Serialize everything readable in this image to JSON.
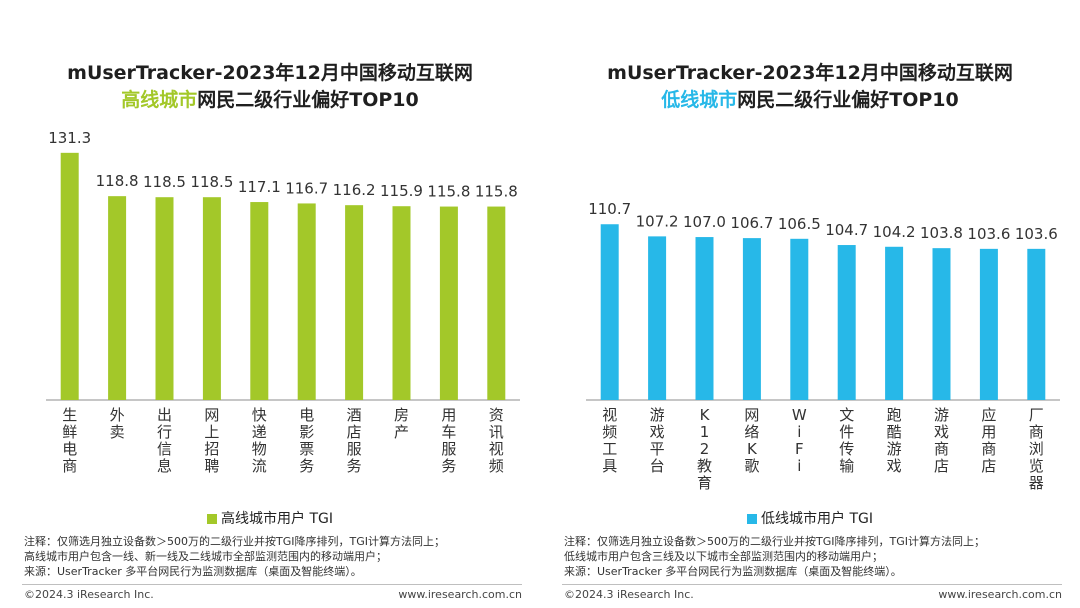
{
  "left": {
    "title_line1": "mUserTracker-2023年12月中国移动互联网",
    "title_highlight": "高线城市",
    "title_rest": "网民二级行业偏好TOP10",
    "legend": "高线城市用户 TGI",
    "note": [
      "注释：仅筛选月独立设备数＞500万的二级行业并按TGI降序排列，TGI计算方法同上；",
      "高线城市用户包含一线、新一线及二线城市全部监测范围内的移动端用户；",
      "来源：UserTracker 多平台网民行为监测数据库（桌面及智能终端）。"
    ],
    "copyright": "©2024.3 iResearch Inc.",
    "site": "www.iresearch.com.cn"
  },
  "right": {
    "title_line1": "mUserTracker-2023年12月中国移动互联网",
    "title_highlight": "低线城市",
    "title_rest": "网民二级行业偏好TOP10",
    "legend": "低线城市用户 TGI",
    "note": [
      "注释：仅筛选月独立设备数＞500万的二级行业并按TGI降序排列，TGI计算方法同上；",
      "低线城市用户包含三线及以下城市全部监测范围内的移动端用户；",
      "来源：UserTracker 多平台网民行为监测数据库（桌面及智能终端）。"
    ],
    "copyright": "©2024.3 iResearch Inc.",
    "site": "www.iresearch.com.cn"
  },
  "colors": {
    "green": "#a3c829",
    "blue": "#27b8e8"
  },
  "chart_data": [
    {
      "type": "bar",
      "title": "mUserTracker-2023年12月中国移动互联网高线城市网民二级行业偏好TOP10",
      "categories": [
        "生鲜电商",
        "外卖",
        "出行信息",
        "网上招聘",
        "快递物流",
        "电影票务",
        "酒店服务",
        "房产",
        "用车服务",
        "资讯视频"
      ],
      "series": [
        {
          "name": "高线城市用户 TGI",
          "values": [
            131.3,
            118.8,
            118.5,
            118.5,
            117.1,
            116.7,
            116.2,
            115.9,
            115.8,
            115.8
          ]
        }
      ],
      "ylim": [
        60,
        135
      ],
      "xlabel": "",
      "ylabel": "",
      "legend": "bottom",
      "grid": false
    },
    {
      "type": "bar",
      "title": "mUserTracker-2023年12月中国移动互联网低线城市网民二级行业偏好TOP10",
      "categories": [
        "视频工具",
        "游戏平台",
        "K12教育",
        "网络K歌",
        "WiFi",
        "文件传输",
        "跑酷游戏",
        "游戏商店",
        "应用商店",
        "厂商浏览器"
      ],
      "series": [
        {
          "name": "低线城市用户 TGI",
          "values": [
            110.7,
            107.2,
            107.0,
            106.7,
            106.5,
            104.7,
            104.2,
            103.8,
            103.6,
            103.6
          ]
        }
      ],
      "ylim": [
        60,
        135
      ],
      "xlabel": "",
      "ylabel": "",
      "legend": "bottom",
      "grid": false
    }
  ]
}
